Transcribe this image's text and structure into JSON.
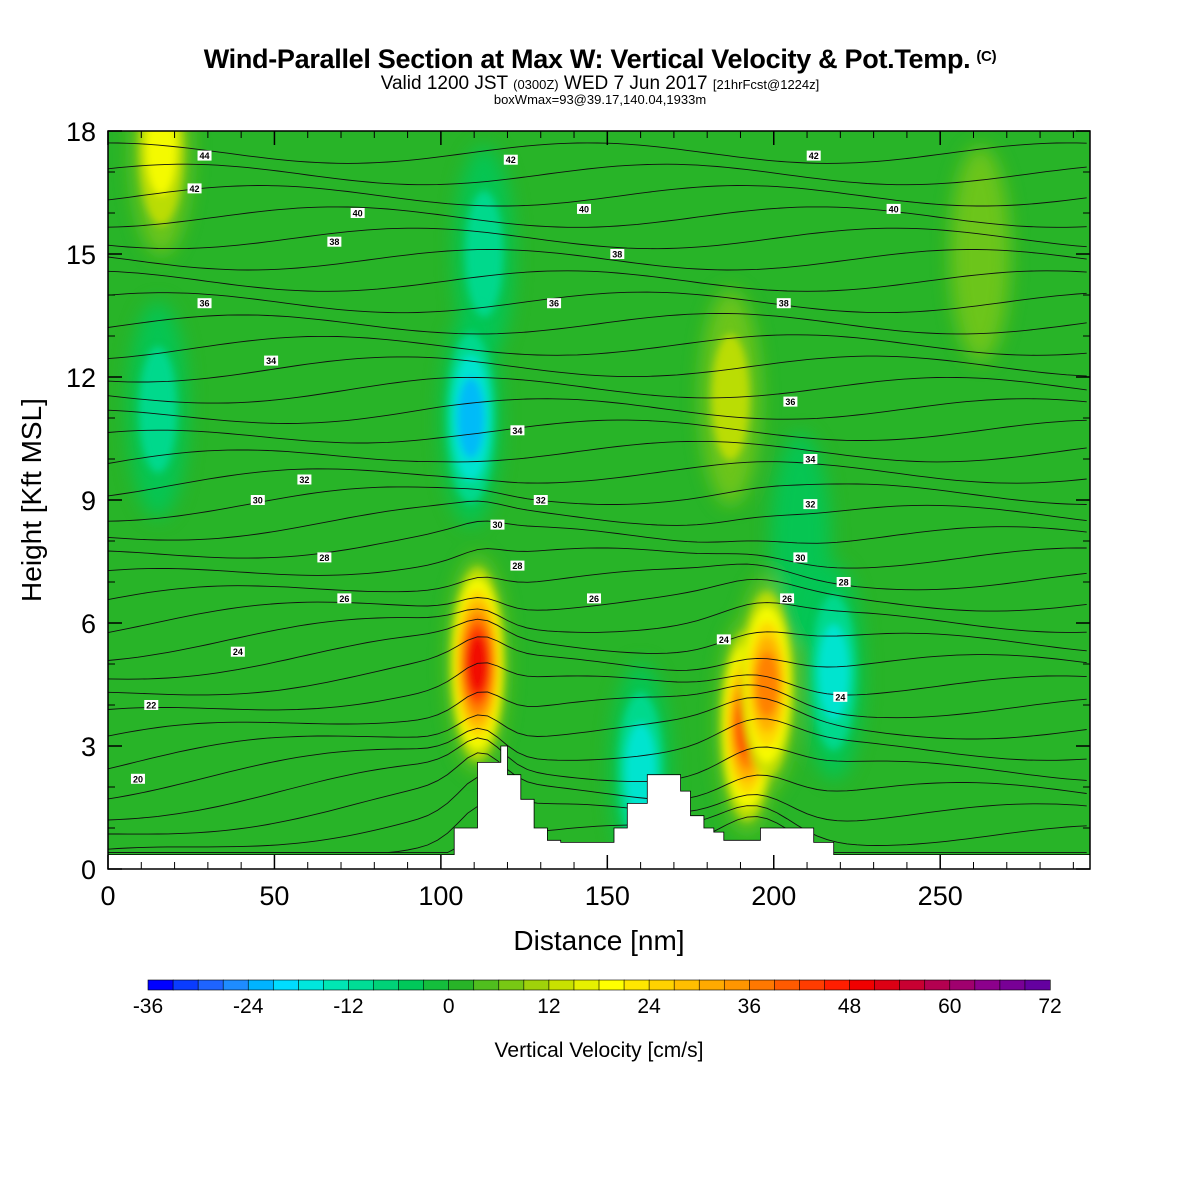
{
  "title": {
    "main": "Wind-Parallel Section at Max W: Vertical Velocity & Pot.Temp.",
    "main_units": "(C)",
    "valid_prefix": "Valid 1200 JST",
    "valid_utc": "(0300Z)",
    "valid_date": "WED 7 Jun 2017",
    "forecast": "[21hrFcst@1224z]",
    "box_wmax": "boxWmax=93@39.17,140.04,1933m"
  },
  "colorbar": {
    "label": "Vertical Velocity [cm/s]",
    "ticks": [
      "-36",
      "-24",
      "-12",
      "0",
      "12",
      "24",
      "36",
      "48",
      "60",
      "72"
    ],
    "levels": [
      -36,
      -33,
      -30,
      -27,
      -24,
      -21,
      -18,
      -15,
      -12,
      -9,
      -6,
      -3,
      0,
      3,
      6,
      9,
      12,
      15,
      18,
      21,
      24,
      27,
      30,
      33,
      36,
      39,
      42,
      45,
      48,
      51,
      54,
      57,
      60,
      63,
      66,
      69,
      72
    ],
    "colors": [
      "#0000ff",
      "#0a3cff",
      "#1e64ff",
      "#1e8cff",
      "#00b4ff",
      "#00dcff",
      "#00e6dc",
      "#00e6b4",
      "#00dc96",
      "#00d278",
      "#00c85a",
      "#14be3c",
      "#28b428",
      "#50be1e",
      "#78c814",
      "#a0d20a",
      "#c8e100",
      "#e6f000",
      "#ffff00",
      "#ffe600",
      "#ffd200",
      "#ffbe00",
      "#ffaa00",
      "#ff9600",
      "#ff7800",
      "#ff5a00",
      "#ff3c00",
      "#ff1e00",
      "#f00000",
      "#dc0014",
      "#c80032",
      "#b40050",
      "#a0006e",
      "#8c008c",
      "#780096",
      "#6400a0"
    ]
  },
  "chart_data": {
    "type": "heatmap",
    "xlabel": "Distance [nm]",
    "ylabel": "Height [Kft MSL]",
    "xlim": [
      0,
      295
    ],
    "ylim": [
      0,
      18
    ],
    "xticks": [
      "0",
      "50",
      "100",
      "150",
      "200",
      "250"
    ],
    "yticks": [
      "0",
      "3",
      "6",
      "9",
      "12",
      "15",
      "18"
    ],
    "contour_field": "Potential temperature (C)",
    "contour_labels": [
      {
        "text": "44",
        "x": 29,
        "y": 17.4
      },
      {
        "text": "42",
        "x": 26,
        "y": 16.6
      },
      {
        "text": "40",
        "x": 75,
        "y": 16.0
      },
      {
        "text": "38",
        "x": 68,
        "y": 15.3
      },
      {
        "text": "36",
        "x": 29,
        "y": 13.8
      },
      {
        "text": "34",
        "x": 49,
        "y": 12.4
      },
      {
        "text": "32",
        "x": 59,
        "y": 9.5
      },
      {
        "text": "30",
        "x": 45,
        "y": 9.0
      },
      {
        "text": "28",
        "x": 65,
        "y": 7.6
      },
      {
        "text": "26",
        "x": 71,
        "y": 6.6
      },
      {
        "text": "24",
        "x": 39,
        "y": 5.3
      },
      {
        "text": "22",
        "x": 13,
        "y": 4.0
      },
      {
        "text": "20",
        "x": 9,
        "y": 2.2
      },
      {
        "text": "42",
        "x": 121,
        "y": 17.3
      },
      {
        "text": "40",
        "x": 143,
        "y": 16.1
      },
      {
        "text": "38",
        "x": 153,
        "y": 15.0
      },
      {
        "text": "36",
        "x": 134,
        "y": 13.8
      },
      {
        "text": "34",
        "x": 123,
        "y": 10.7
      },
      {
        "text": "32",
        "x": 130,
        "y": 9.0
      },
      {
        "text": "30",
        "x": 117,
        "y": 8.4
      },
      {
        "text": "28",
        "x": 123,
        "y": 7.4
      },
      {
        "text": "26",
        "x": 146,
        "y": 6.6
      },
      {
        "text": "42",
        "x": 212,
        "y": 17.4
      },
      {
        "text": "40",
        "x": 236,
        "y": 16.1
      },
      {
        "text": "38",
        "x": 203,
        "y": 13.8
      },
      {
        "text": "36",
        "x": 205,
        "y": 11.4
      },
      {
        "text": "34",
        "x": 211,
        "y": 10.0
      },
      {
        "text": "32",
        "x": 211,
        "y": 8.9
      },
      {
        "text": "30",
        "x": 208,
        "y": 7.6
      },
      {
        "text": "28",
        "x": 221,
        "y": 7.0
      },
      {
        "text": "26",
        "x": 204,
        "y": 6.6
      },
      {
        "text": "24",
        "x": 185,
        "y": 5.6
      },
      {
        "text": "24",
        "x": 220,
        "y": 4.2
      }
    ],
    "velocity_features": [
      {
        "feature": "updraft core",
        "x": 111,
        "y": 5.0,
        "value_cm_s": 50
      },
      {
        "feature": "updraft",
        "x": 192,
        "y": 3.5,
        "value_cm_s": 45
      },
      {
        "feature": "updraft",
        "x": 198,
        "y": 4.5,
        "value_cm_s": 40
      },
      {
        "feature": "updraft aloft",
        "x": 187,
        "y": 11.5,
        "value_cm_s": 15
      },
      {
        "feature": "downdraft core",
        "x": 109,
        "y": 11.0,
        "value_cm_s": -27
      },
      {
        "feature": "downdraft",
        "x": 113,
        "y": 15.0,
        "value_cm_s": -14
      },
      {
        "feature": "downdraft",
        "x": 15,
        "y": 11.2,
        "value_cm_s": -13
      },
      {
        "feature": "downdraft",
        "x": 160,
        "y": 2.4,
        "value_cm_s": -22
      },
      {
        "feature": "downdraft",
        "x": 218,
        "y": 4.8,
        "value_cm_s": -18
      },
      {
        "feature": "downdraft band",
        "x": 208,
        "y": 8.0,
        "value_cm_s": -10
      },
      {
        "feature": "updraft",
        "x": 16,
        "y": 17.6,
        "value_cm_s": 18
      },
      {
        "feature": "updraft",
        "x": 262,
        "y": 15.0,
        "value_cm_s": 8
      }
    ],
    "terrain": [
      [
        0,
        0.35
      ],
      [
        100,
        0.35
      ],
      [
        104,
        0.35
      ],
      [
        104,
        1.0
      ],
      [
        111,
        1.0
      ],
      [
        111,
        2.6
      ],
      [
        118,
        2.6
      ],
      [
        118,
        3.0
      ],
      [
        120,
        3.0
      ],
      [
        120,
        2.3
      ],
      [
        124,
        2.3
      ],
      [
        124,
        1.7
      ],
      [
        128,
        1.7
      ],
      [
        128,
        1.0
      ],
      [
        132,
        1.0
      ],
      [
        132,
        0.7
      ],
      [
        136,
        0.7
      ],
      [
        136,
        0.65
      ],
      [
        152,
        0.65
      ],
      [
        152,
        1.0
      ],
      [
        156,
        1.0
      ],
      [
        156,
        1.6
      ],
      [
        162,
        1.6
      ],
      [
        162,
        2.3
      ],
      [
        172,
        2.3
      ],
      [
        172,
        1.9
      ],
      [
        175,
        1.9
      ],
      [
        175,
        1.3
      ],
      [
        179,
        1.3
      ],
      [
        179,
        1.0
      ],
      [
        182,
        1.0
      ],
      [
        182,
        0.9
      ],
      [
        185,
        0.9
      ],
      [
        185,
        0.7
      ],
      [
        196,
        0.7
      ],
      [
        196,
        1.0
      ],
      [
        212,
        1.0
      ],
      [
        212,
        0.65
      ],
      [
        218,
        0.65
      ],
      [
        218,
        0.35
      ],
      [
        295,
        0.35
      ]
    ]
  }
}
